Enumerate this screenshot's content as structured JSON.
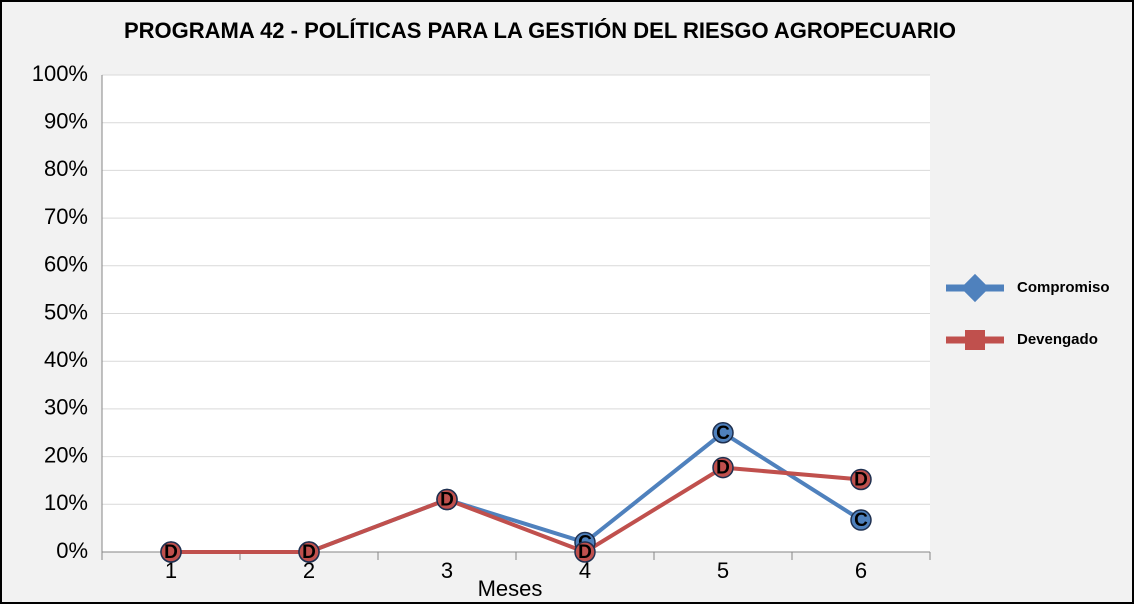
{
  "chart_data": {
    "type": "line",
    "title": "PROGRAMA 42 - POLÍTICAS PARA LA GESTIÓN DEL RIESGO AGROPECUARIO",
    "x_label": "Meses",
    "categories": [
      "1",
      "2",
      "3",
      "4",
      "5",
      "6"
    ],
    "series": [
      {
        "name": "Compromiso",
        "color": "#4f81bd",
        "marker_text": "C",
        "values": [
          0,
          0,
          11,
          2,
          25,
          6.7
        ]
      },
      {
        "name": "Devengado",
        "color": "#c0504d",
        "marker_text": "D",
        "values": [
          0,
          0,
          11,
          0,
          17.7,
          15.2
        ]
      }
    ],
    "ylim": [
      0,
      100
    ],
    "yticks": [
      {
        "value": 0,
        "label": "0%"
      },
      {
        "value": 10,
        "label": "10%"
      },
      {
        "value": 20,
        "label": "20%"
      },
      {
        "value": 30,
        "label": "30%"
      },
      {
        "value": 40,
        "label": "40%"
      },
      {
        "value": 50,
        "label": "50%"
      },
      {
        "value": 60,
        "label": "60%"
      },
      {
        "value": 70,
        "label": "70%"
      },
      {
        "value": 80,
        "label": "80%"
      },
      {
        "value": 90,
        "label": "90%"
      },
      {
        "value": 100,
        "label": "100%"
      }
    ],
    "grid": true,
    "legend": "right"
  }
}
